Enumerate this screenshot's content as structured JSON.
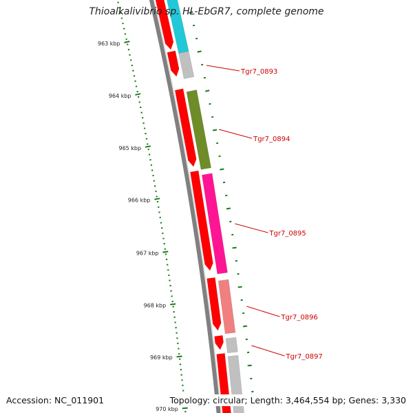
{
  "title": "Thioalkalivibrio sp. HL-EbGR7, complete genome",
  "accession_text": "Accession: NC_011901",
  "summary_text": "Topology: circular; Length: 3,464,554 bp; Genes: 3,330",
  "tick_labels": [
    "963 kbp",
    "964 kbp",
    "965 kbp",
    "966 kbp",
    "967 kbp",
    "968 kbp",
    "969 kbp",
    "970 kbp"
  ],
  "gene_labels": [
    "Tgr7_0893",
    "Tgr7_0894",
    "Tgr7_0895",
    "Tgr7_0896",
    "Tgr7_0897"
  ],
  "colors": {
    "forward_strand": "#ff0000",
    "backbone": "#808080",
    "tick": "#1a7a1a",
    "label": "#cc0000",
    "cyan": "#22c8d8",
    "grey": "#c0c0c0",
    "olive": "#6e8c28",
    "pink": "#ff1493",
    "salmon": "#f08080"
  }
}
